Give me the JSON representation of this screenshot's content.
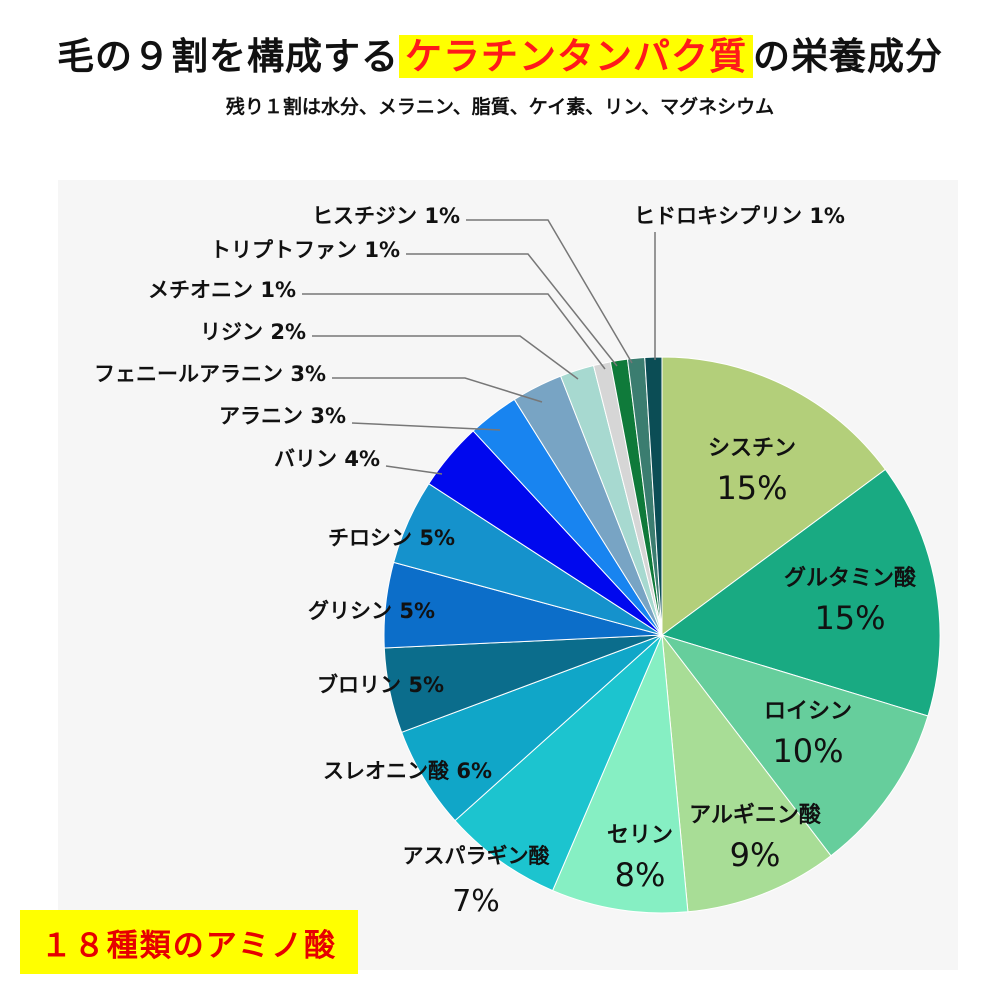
{
  "header": {
    "title_prefix": "毛の９割を構成する",
    "title_highlight": "ケラチンタンパク質",
    "title_suffix": "の栄養成分",
    "subtitle": "残り１割は水分、メラニン、脂質、ケイ素、リン、マグネシウム"
  },
  "badge": {
    "label": "１８種類のアミノ酸"
  },
  "chart_data": {
    "type": "pie",
    "title": "",
    "legend": "none",
    "slices": [
      {
        "name": "シスチン",
        "value": 15,
        "label": "15%",
        "color": "#b3cf7a"
      },
      {
        "name": "グルタミン酸",
        "value": 15,
        "label": "15%",
        "color": "#19aa82"
      },
      {
        "name": "ロイシン",
        "value": 10,
        "label": "10%",
        "color": "#66ce9c"
      },
      {
        "name": "アルギニン酸",
        "value": 9,
        "label": "9%",
        "color": "#a8dd96"
      },
      {
        "name": "セリン",
        "value": 8,
        "label": "8%",
        "color": "#86efc3"
      },
      {
        "name": "アスパラギン酸",
        "value": 7,
        "label": "7%",
        "color": "#1cc4cf"
      },
      {
        "name": "スレオニン酸",
        "value": 6,
        "label": "6%",
        "color": "#10a6c8"
      },
      {
        "name": "ブロリン",
        "value": 5,
        "label": "5%",
        "color": "#0b6d8c"
      },
      {
        "name": "グリシン",
        "value": 5,
        "label": "5%",
        "color": "#0c6ec9"
      },
      {
        "name": "チロシン",
        "value": 5,
        "label": "5%",
        "color": "#1592cc"
      },
      {
        "name": "バリン",
        "value": 4,
        "label": "4%",
        "color": "#0008ee"
      },
      {
        "name": "アラニン",
        "value": 3,
        "label": "3%",
        "color": "#1884f0"
      },
      {
        "name": "フェニールアラニン",
        "value": 3,
        "label": "3%",
        "color": "#78a4c4"
      },
      {
        "name": "リジン",
        "value": 2,
        "label": "2%",
        "color": "#a7d9d0"
      },
      {
        "name": "メチオニン",
        "value": 1,
        "label": "1%",
        "color": "#d6d6d6"
      },
      {
        "name": "トリプトファン",
        "value": 1,
        "label": "1%",
        "color": "#0f7a3a"
      },
      {
        "name": "ヒスチジン",
        "value": 1,
        "label": "1%",
        "color": "#3b7d70"
      },
      {
        "name": "ヒドロキシプリン",
        "value": 1,
        "label": "1%",
        "color": "#0b4d55"
      }
    ]
  }
}
